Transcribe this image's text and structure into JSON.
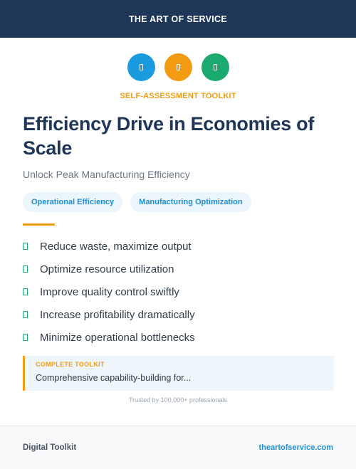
{
  "header": {
    "brand": "THE ART OF SERVICE"
  },
  "icons": [
    {
      "name": "blue-icon",
      "color": "#1a9be0"
    },
    {
      "name": "orange-icon",
      "color": "#f39c12"
    },
    {
      "name": "green-icon",
      "color": "#1aaa6e"
    }
  ],
  "kicker": "SELF-ASSESSMENT TOOLKIT",
  "title": "Efficiency Drive in Economies of Scale",
  "subtitle": "Unlock Peak Manufacturing Efficiency",
  "tags": [
    "Operational Efficiency",
    "Manufacturing Optimization"
  ],
  "benefits": [
    "Reduce waste, maximize output",
    "Optimize resource utilization",
    "Improve quality control swiftly",
    "Increase profitability dramatically",
    "Minimize operational bottlenecks"
  ],
  "callout": {
    "label": "COMPLETE TOOLKIT",
    "text": "Comprehensive capability-building for..."
  },
  "trust": "Trusted by 100,000+ professionals",
  "footer": {
    "left": "Digital Toolkit",
    "right": "theartofservice.com"
  },
  "colors": {
    "navy": "#1e3658",
    "accent_orange": "#f39c12",
    "accent_blue": "#1d8fd0",
    "accent_green": "#1aaa6e"
  }
}
